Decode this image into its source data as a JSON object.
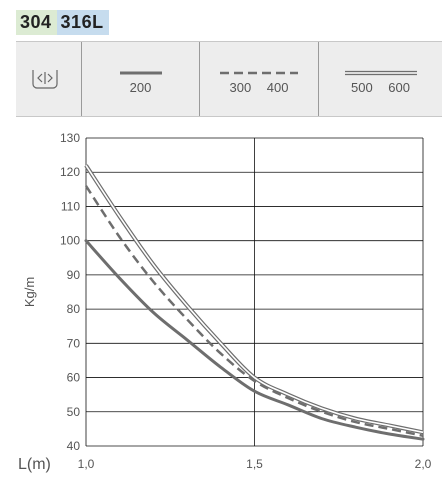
{
  "header": {
    "grades": [
      "304",
      "316L"
    ]
  },
  "legend": {
    "icon": "width-arrows-icon",
    "entries": [
      {
        "style": "solid",
        "label": "200"
      },
      {
        "style": "dashed",
        "label": "300 400"
      },
      {
        "style": "double",
        "label": "500 600"
      }
    ]
  },
  "colors": {
    "badge_304": "#dcebd3",
    "badge_316L": "#c6dcee",
    "legend_bg": "#ededed",
    "line": "#6e6e6e",
    "grid": "#111111"
  },
  "chart_data": {
    "type": "line",
    "xlabel": "L(m)",
    "ylabel": "Kg/m",
    "xlim": [
      1.0,
      2.0
    ],
    "ylim": [
      40,
      130
    ],
    "x_ticks": [
      "1,0",
      "1,5",
      "2,0"
    ],
    "y_ticks": [
      130,
      120,
      110,
      100,
      90,
      80,
      70,
      60,
      50,
      40
    ],
    "grid": true,
    "series": [
      {
        "name": "200",
        "style": "solid",
        "x": [
          1.0,
          1.1,
          1.2,
          1.3,
          1.4,
          1.5,
          1.6,
          1.7,
          1.8,
          1.9,
          2.0
        ],
        "y": [
          100,
          89,
          79,
          71,
          63,
          56,
          52,
          48,
          45.5,
          43.5,
          42
        ]
      },
      {
        "name": "300 400",
        "style": "dashed",
        "x": [
          1.0,
          1.1,
          1.2,
          1.3,
          1.4,
          1.5,
          1.6,
          1.7,
          1.8,
          1.9,
          2.0
        ],
        "y": [
          116,
          101,
          88,
          77,
          67,
          59,
          54,
          50,
          47,
          45,
          43
        ]
      },
      {
        "name": "500 600",
        "style": "double",
        "x": [
          1.0,
          1.1,
          1.2,
          1.3,
          1.4,
          1.5,
          1.6,
          1.7,
          1.8,
          1.9,
          2.0
        ],
        "y": [
          122,
          107,
          93,
          81,
          70,
          60,
          55,
          51,
          48,
          46,
          44
        ]
      }
    ]
  }
}
